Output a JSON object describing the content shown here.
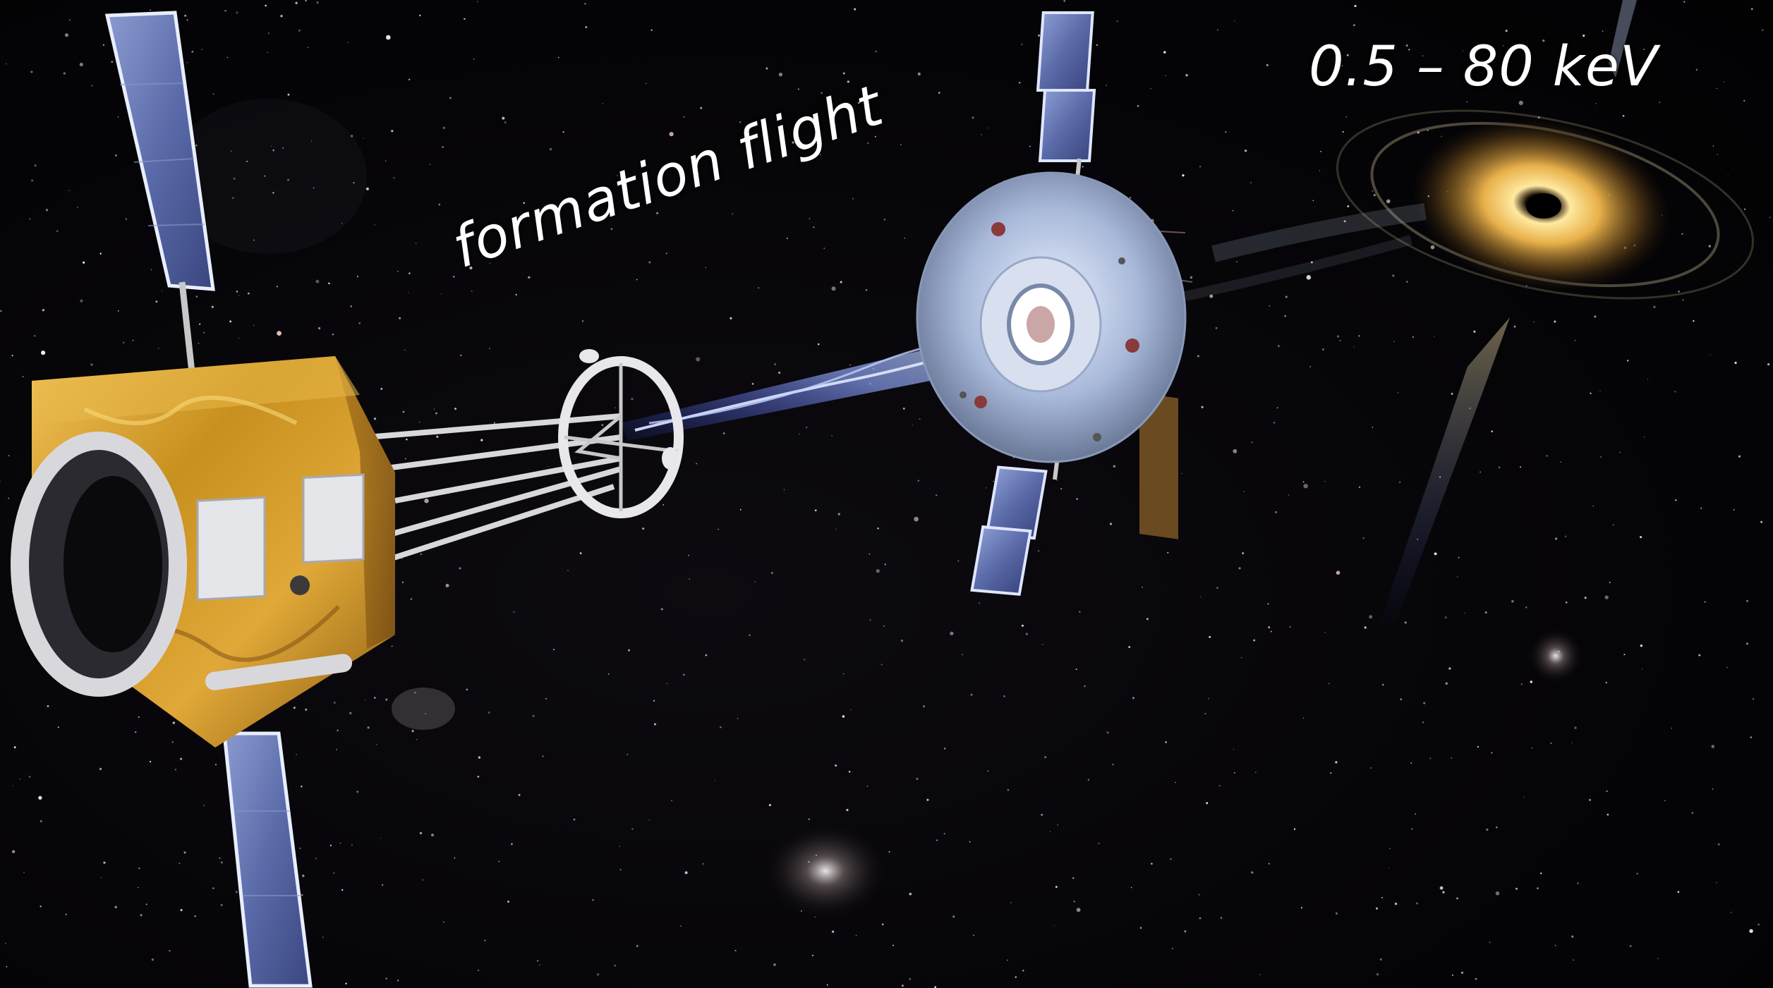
{
  "image": {
    "labels": {
      "formation": "formation flight",
      "energy_band": "0.5 – 80 keV"
    },
    "colors": {
      "space_background": "#050407",
      "gold_foil": "#c8901e",
      "solar_panel": "#5a6aa8",
      "xray_beam": "#8fa8ff",
      "accretion_disk": "#f2c85a"
    }
  }
}
